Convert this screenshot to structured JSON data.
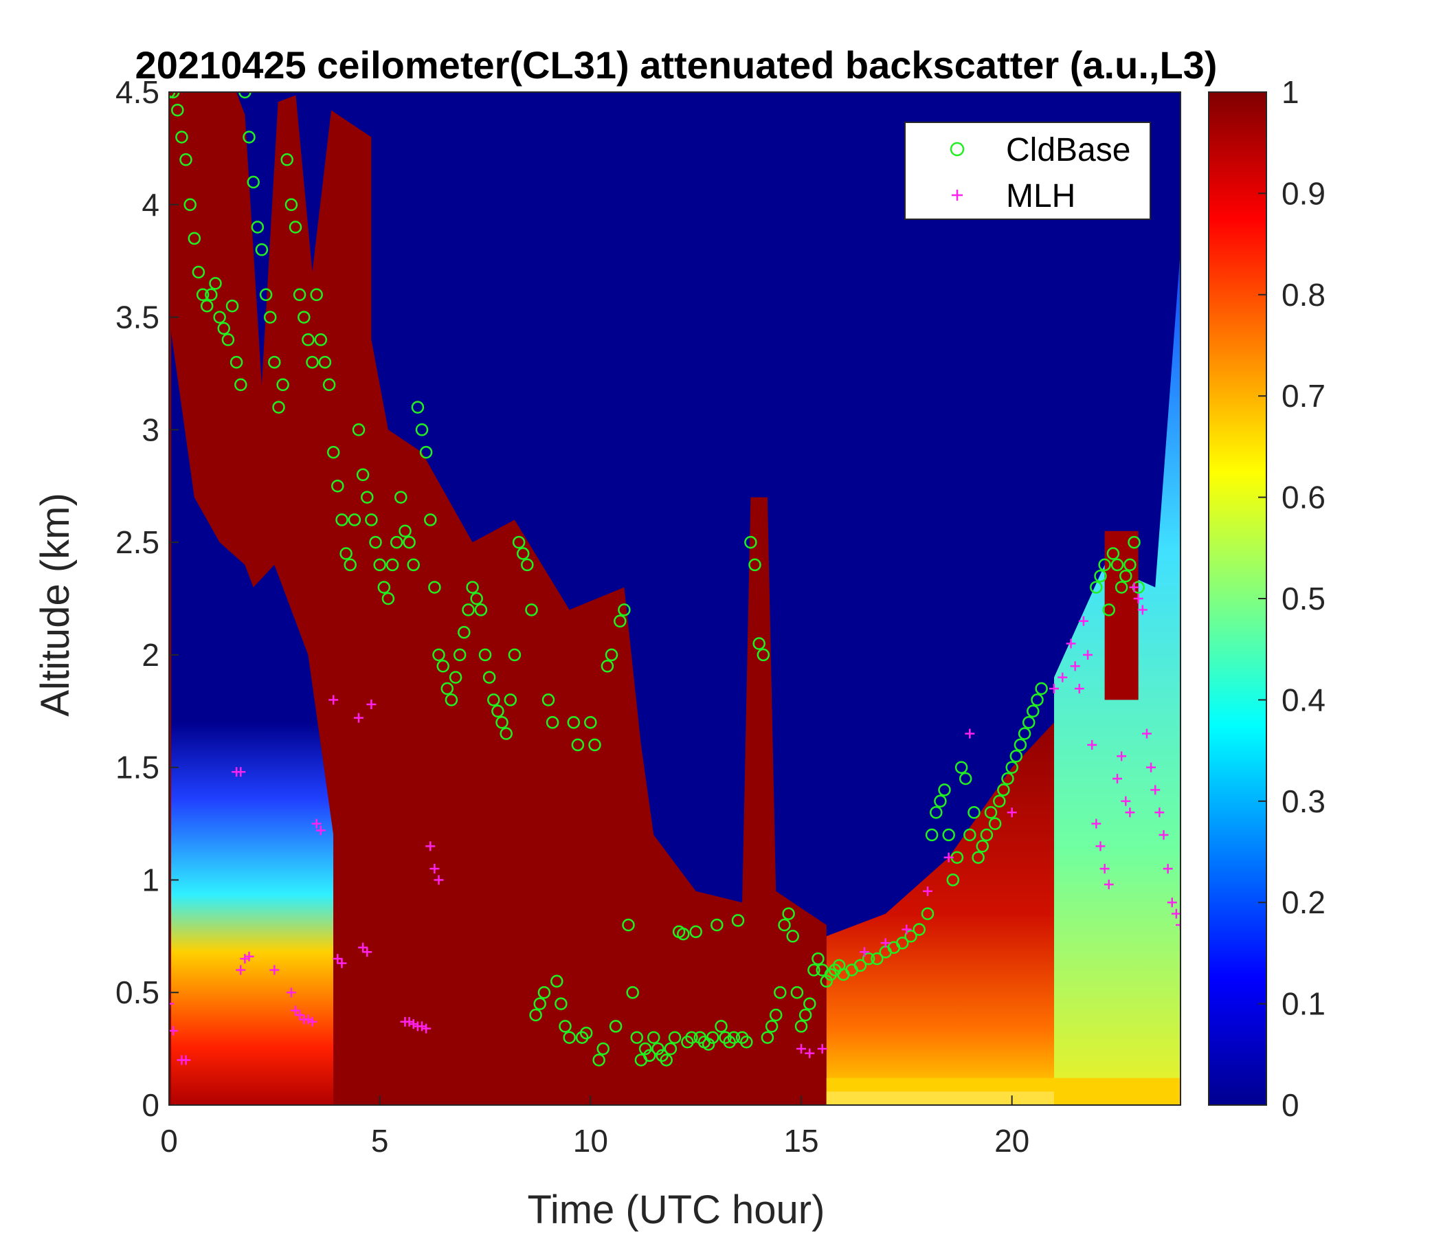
{
  "chart_data": {
    "type": "heatmap",
    "title": "20210425 ceilometer(CL31) attenuated backscatter (a.u.,L3)",
    "xlabel": "Time (UTC hour)",
    "ylabel": "Altitude (km)",
    "xlim": [
      0,
      24
    ],
    "ylim": [
      0,
      4.5
    ],
    "xticks": [
      "0",
      "5",
      "10",
      "15",
      "20"
    ],
    "xtick_values": [
      0,
      5,
      10,
      15,
      20
    ],
    "yticks": [
      "0",
      "0.5",
      "1",
      "1.5",
      "2",
      "2.5",
      "3",
      "3.5",
      "4",
      "4.5"
    ],
    "ytick_values": [
      0,
      0.5,
      1,
      1.5,
      2,
      2.5,
      3,
      3.5,
      4,
      4.5
    ],
    "colorbar": {
      "colormap": "jet",
      "range": [
        0,
        1
      ],
      "ticks": [
        "0",
        "0.1",
        "0.2",
        "0.3",
        "0.4",
        "0.5",
        "0.6",
        "0.7",
        "0.8",
        "0.9",
        "1"
      ],
      "tick_values": [
        0,
        0.1,
        0.2,
        0.3,
        0.4,
        0.5,
        0.6,
        0.7,
        0.8,
        0.9,
        1
      ]
    },
    "legend": {
      "placement": "top-right",
      "entries": [
        {
          "label": "CldBase",
          "marker": "circle",
          "color": "#22ee22"
        },
        {
          "label": "MLH",
          "marker": "plus",
          "color": "#ff22ee"
        }
      ]
    },
    "series": [
      {
        "name": "CldBase",
        "marker": "circle",
        "color": "#22ee22",
        "points": [
          [
            0.0,
            4.5
          ],
          [
            0.1,
            4.5
          ],
          [
            0.2,
            4.42
          ],
          [
            0.3,
            4.3
          ],
          [
            0.4,
            4.2
          ],
          [
            0.5,
            4.0
          ],
          [
            0.6,
            3.85
          ],
          [
            0.7,
            3.7
          ],
          [
            0.8,
            3.6
          ],
          [
            0.9,
            3.55
          ],
          [
            1.0,
            3.6
          ],
          [
            1.1,
            3.65
          ],
          [
            1.2,
            3.5
          ],
          [
            1.3,
            3.45
          ],
          [
            1.4,
            3.4
          ],
          [
            1.5,
            3.55
          ],
          [
            1.6,
            3.3
          ],
          [
            1.7,
            3.2
          ],
          [
            1.8,
            4.5
          ],
          [
            1.9,
            4.3
          ],
          [
            2.0,
            4.1
          ],
          [
            2.1,
            3.9
          ],
          [
            2.2,
            3.8
          ],
          [
            2.3,
            3.6
          ],
          [
            2.4,
            3.5
          ],
          [
            2.5,
            3.3
          ],
          [
            2.6,
            3.1
          ],
          [
            2.7,
            3.2
          ],
          [
            2.8,
            4.2
          ],
          [
            2.9,
            4.0
          ],
          [
            3.0,
            3.9
          ],
          [
            3.1,
            3.6
          ],
          [
            3.2,
            3.5
          ],
          [
            3.3,
            3.4
          ],
          [
            3.4,
            3.3
          ],
          [
            3.5,
            3.6
          ],
          [
            3.6,
            3.4
          ],
          [
            3.7,
            3.3
          ],
          [
            3.8,
            3.2
          ],
          [
            3.9,
            2.9
          ],
          [
            4.0,
            2.75
          ],
          [
            4.1,
            2.6
          ],
          [
            4.2,
            2.45
          ],
          [
            4.3,
            2.4
          ],
          [
            4.4,
            2.6
          ],
          [
            4.5,
            3.0
          ],
          [
            4.6,
            2.8
          ],
          [
            4.7,
            2.7
          ],
          [
            4.8,
            2.6
          ],
          [
            4.9,
            2.5
          ],
          [
            5.0,
            2.4
          ],
          [
            5.1,
            2.3
          ],
          [
            5.2,
            2.25
          ],
          [
            5.3,
            2.4
          ],
          [
            5.4,
            2.5
          ],
          [
            5.5,
            2.7
          ],
          [
            5.6,
            2.55
          ],
          [
            5.7,
            2.5
          ],
          [
            5.8,
            2.4
          ],
          [
            5.9,
            3.1
          ],
          [
            6.0,
            3.0
          ],
          [
            6.1,
            2.9
          ],
          [
            6.2,
            2.6
          ],
          [
            6.3,
            2.3
          ],
          [
            6.4,
            2.0
          ],
          [
            6.5,
            1.95
          ],
          [
            6.6,
            1.85
          ],
          [
            6.7,
            1.8
          ],
          [
            6.8,
            1.9
          ],
          [
            6.9,
            2.0
          ],
          [
            7.0,
            2.1
          ],
          [
            7.1,
            2.2
          ],
          [
            7.2,
            2.3
          ],
          [
            7.3,
            2.25
          ],
          [
            7.4,
            2.2
          ],
          [
            7.5,
            2.0
          ],
          [
            7.6,
            1.9
          ],
          [
            7.7,
            1.8
          ],
          [
            7.8,
            1.75
          ],
          [
            7.9,
            1.7
          ],
          [
            8.0,
            1.65
          ],
          [
            8.1,
            1.8
          ],
          [
            8.2,
            2.0
          ],
          [
            8.3,
            2.5
          ],
          [
            8.4,
            2.45
          ],
          [
            8.5,
            2.4
          ],
          [
            8.6,
            2.2
          ],
          [
            8.7,
            0.4
          ],
          [
            8.8,
            0.45
          ],
          [
            8.9,
            0.5
          ],
          [
            9.0,
            1.8
          ],
          [
            9.1,
            1.7
          ],
          [
            9.2,
            0.55
          ],
          [
            9.3,
            0.45
          ],
          [
            9.4,
            0.35
          ],
          [
            9.5,
            0.3
          ],
          [
            9.6,
            1.7
          ],
          [
            9.7,
            1.6
          ],
          [
            9.8,
            0.3
          ],
          [
            9.9,
            0.32
          ],
          [
            10.0,
            1.7
          ],
          [
            10.1,
            1.6
          ],
          [
            10.2,
            0.2
          ],
          [
            10.3,
            0.25
          ],
          [
            10.4,
            1.95
          ],
          [
            10.5,
            2.0
          ],
          [
            10.6,
            0.35
          ],
          [
            10.7,
            2.15
          ],
          [
            10.8,
            2.2
          ],
          [
            10.9,
            0.8
          ],
          [
            11.0,
            0.5
          ],
          [
            11.1,
            0.3
          ],
          [
            11.2,
            0.2
          ],
          [
            11.3,
            0.25
          ],
          [
            11.4,
            0.22
          ],
          [
            11.5,
            0.3
          ],
          [
            11.6,
            0.25
          ],
          [
            11.7,
            0.22
          ],
          [
            11.8,
            0.2
          ],
          [
            11.9,
            0.25
          ],
          [
            12.0,
            0.3
          ],
          [
            12.1,
            0.77
          ],
          [
            12.2,
            0.76
          ],
          [
            12.3,
            0.28
          ],
          [
            12.4,
            0.3
          ],
          [
            12.5,
            0.77
          ],
          [
            12.6,
            0.3
          ],
          [
            12.7,
            0.28
          ],
          [
            12.8,
            0.27
          ],
          [
            12.9,
            0.3
          ],
          [
            13.0,
            0.8
          ],
          [
            13.1,
            0.35
          ],
          [
            13.2,
            0.3
          ],
          [
            13.3,
            0.28
          ],
          [
            13.4,
            0.3
          ],
          [
            13.5,
            0.82
          ],
          [
            13.6,
            0.3
          ],
          [
            13.7,
            0.28
          ],
          [
            13.8,
            2.5
          ],
          [
            13.9,
            2.4
          ],
          [
            14.0,
            2.05
          ],
          [
            14.1,
            2.0
          ],
          [
            14.2,
            0.3
          ],
          [
            14.3,
            0.35
          ],
          [
            14.4,
            0.4
          ],
          [
            14.5,
            0.5
          ],
          [
            14.6,
            0.8
          ],
          [
            14.7,
            0.85
          ],
          [
            14.8,
            0.75
          ],
          [
            14.9,
            0.5
          ],
          [
            15.0,
            0.35
          ],
          [
            15.1,
            0.4
          ],
          [
            15.2,
            0.45
          ],
          [
            15.3,
            0.6
          ],
          [
            15.4,
            0.65
          ],
          [
            15.5,
            0.6
          ],
          [
            15.6,
            0.55
          ],
          [
            15.7,
            0.58
          ],
          [
            15.8,
            0.6
          ],
          [
            15.9,
            0.62
          ],
          [
            16.0,
            0.58
          ],
          [
            16.2,
            0.6
          ],
          [
            16.4,
            0.62
          ],
          [
            16.6,
            0.65
          ],
          [
            16.8,
            0.65
          ],
          [
            17.0,
            0.68
          ],
          [
            17.2,
            0.7
          ],
          [
            17.4,
            0.72
          ],
          [
            17.6,
            0.75
          ],
          [
            17.8,
            0.78
          ],
          [
            18.0,
            0.85
          ],
          [
            18.1,
            1.2
          ],
          [
            18.2,
            1.3
          ],
          [
            18.3,
            1.35
          ],
          [
            18.4,
            1.4
          ],
          [
            18.5,
            1.2
          ],
          [
            18.6,
            1.0
          ],
          [
            18.7,
            1.1
          ],
          [
            18.8,
            1.5
          ],
          [
            18.9,
            1.45
          ],
          [
            19.0,
            1.2
          ],
          [
            19.1,
            1.3
          ],
          [
            19.2,
            1.1
          ],
          [
            19.3,
            1.15
          ],
          [
            19.4,
            1.2
          ],
          [
            19.5,
            1.3
          ],
          [
            19.6,
            1.25
          ],
          [
            19.7,
            1.35
          ],
          [
            19.8,
            1.4
          ],
          [
            19.9,
            1.45
          ],
          [
            20.0,
            1.5
          ],
          [
            20.1,
            1.55
          ],
          [
            20.2,
            1.6
          ],
          [
            20.3,
            1.65
          ],
          [
            20.4,
            1.7
          ],
          [
            20.5,
            1.75
          ],
          [
            20.6,
            1.8
          ],
          [
            20.7,
            1.85
          ],
          [
            22.0,
            2.3
          ],
          [
            22.1,
            2.35
          ],
          [
            22.2,
            2.4
          ],
          [
            22.3,
            2.2
          ],
          [
            22.4,
            2.45
          ],
          [
            22.5,
            2.4
          ],
          [
            22.6,
            2.3
          ],
          [
            22.7,
            2.35
          ],
          [
            22.8,
            2.4
          ],
          [
            22.9,
            2.5
          ],
          [
            23.0,
            2.3
          ]
        ]
      },
      {
        "name": "MLH",
        "marker": "plus",
        "color": "#ff22ee",
        "points": [
          [
            0.0,
            0.45
          ],
          [
            0.1,
            0.33
          ],
          [
            0.3,
            0.2
          ],
          [
            0.4,
            0.2
          ],
          [
            1.6,
            1.48
          ],
          [
            1.7,
            1.48
          ],
          [
            1.7,
            0.6
          ],
          [
            1.8,
            0.65
          ],
          [
            1.9,
            0.66
          ],
          [
            2.5,
            0.6
          ],
          [
            2.9,
            0.5
          ],
          [
            3.0,
            0.42
          ],
          [
            3.1,
            0.4
          ],
          [
            3.2,
            0.38
          ],
          [
            3.3,
            0.38
          ],
          [
            3.4,
            0.37
          ],
          [
            3.5,
            1.25
          ],
          [
            3.6,
            1.22
          ],
          [
            3.9,
            1.8
          ],
          [
            4.0,
            0.65
          ],
          [
            4.1,
            0.63
          ],
          [
            4.5,
            1.72
          ],
          [
            4.6,
            0.7
          ],
          [
            4.7,
            0.68
          ],
          [
            4.8,
            1.78
          ],
          [
            5.6,
            0.37
          ],
          [
            5.7,
            0.37
          ],
          [
            5.8,
            0.36
          ],
          [
            5.9,
            0.35
          ],
          [
            6.0,
            0.35
          ],
          [
            6.1,
            0.34
          ],
          [
            6.2,
            1.15
          ],
          [
            6.3,
            1.05
          ],
          [
            6.4,
            1.0
          ],
          [
            15.0,
            0.25
          ],
          [
            15.2,
            0.23
          ],
          [
            15.5,
            0.25
          ],
          [
            16.5,
            0.68
          ],
          [
            17.0,
            0.72
          ],
          [
            17.5,
            0.78
          ],
          [
            18.0,
            0.95
          ],
          [
            18.5,
            1.1
          ],
          [
            19.0,
            1.65
          ],
          [
            20.0,
            1.3
          ],
          [
            21.0,
            1.85
          ],
          [
            21.2,
            1.9
          ],
          [
            21.4,
            2.05
          ],
          [
            21.5,
            1.95
          ],
          [
            21.6,
            1.85
          ],
          [
            21.7,
            2.15
          ],
          [
            21.8,
            2.0
          ],
          [
            21.9,
            1.6
          ],
          [
            22.0,
            1.25
          ],
          [
            22.1,
            1.15
          ],
          [
            22.2,
            1.05
          ],
          [
            22.3,
            0.98
          ],
          [
            22.5,
            1.45
          ],
          [
            22.6,
            1.55
          ],
          [
            22.7,
            1.35
          ],
          [
            22.8,
            1.3
          ],
          [
            22.9,
            2.3
          ],
          [
            23.0,
            2.25
          ],
          [
            23.1,
            2.2
          ],
          [
            23.2,
            1.65
          ],
          [
            23.3,
            1.5
          ],
          [
            23.4,
            1.4
          ],
          [
            23.5,
            1.3
          ],
          [
            23.6,
            1.2
          ],
          [
            23.7,
            1.05
          ],
          [
            23.8,
            0.9
          ],
          [
            23.9,
            0.85
          ],
          [
            24.0,
            0.8
          ]
        ]
      }
    ]
  }
}
